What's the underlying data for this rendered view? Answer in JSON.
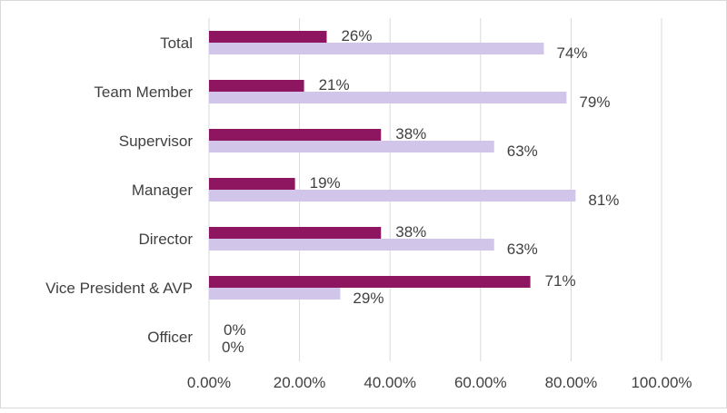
{
  "chart_data": {
    "type": "bar",
    "orientation": "horizontal",
    "categories": [
      "Total",
      "Team Member",
      "Supervisor",
      "Manager",
      "Director",
      "Vice President & AVP",
      "Officer"
    ],
    "series": [
      {
        "values": [
          26,
          21,
          38,
          19,
          38,
          71,
          0
        ],
        "color": "#8E1560"
      },
      {
        "values": [
          74,
          79,
          63,
          81,
          63,
          29,
          0
        ],
        "color": "#D1C6EA"
      }
    ],
    "data_labels": [
      [
        "26%",
        "21%",
        "38%",
        "19%",
        "38%",
        "71%",
        "0%"
      ],
      [
        "74%",
        "79%",
        "63%",
        "81%",
        "63%",
        "29%",
        "0%"
      ]
    ],
    "xlim": [
      0,
      100
    ],
    "xticks": [
      0,
      20,
      40,
      60,
      80,
      100
    ],
    "xtick_labels": [
      "0.00%",
      "20.00%",
      "40.00%",
      "60.00%",
      "80.00%",
      "100.00%"
    ],
    "grid": "vertical",
    "legend": "none",
    "title": "",
    "xlabel": "",
    "ylabel": ""
  }
}
